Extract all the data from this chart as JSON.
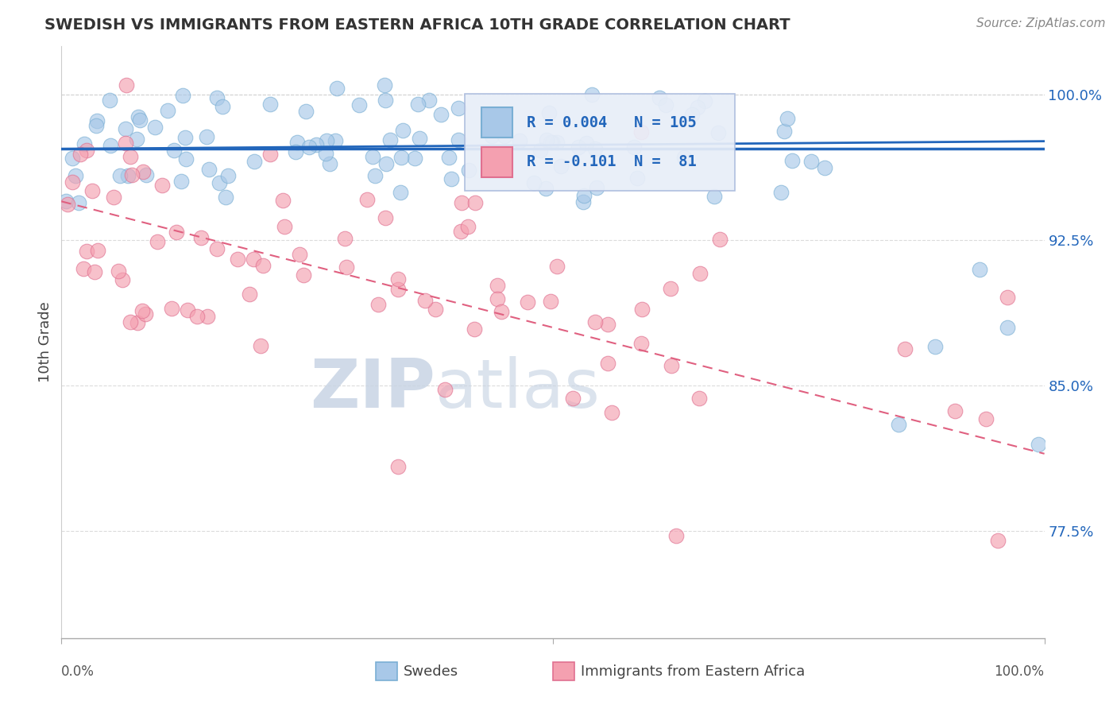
{
  "title": "SWEDISH VS IMMIGRANTS FROM EASTERN AFRICA 10TH GRADE CORRELATION CHART",
  "source_text": "Source: ZipAtlas.com",
  "ylabel": "10th Grade",
  "xlim": [
    0.0,
    1.0
  ],
  "ylim": [
    0.72,
    1.025
  ],
  "yticks": [
    0.775,
    0.85,
    0.925,
    1.0
  ],
  "ytick_labels": [
    "77.5%",
    "85.0%",
    "92.5%",
    "100.0%"
  ],
  "legend_r_swedes": "R = 0.004",
  "legend_n_swedes": "N = 105",
  "legend_r_immigrants": "R = -0.101",
  "legend_n_immigrants": "N =  81",
  "swedes_color": "#a8c8e8",
  "swedes_edge_color": "#7aafd4",
  "immigrants_color": "#f4a0b0",
  "immigrants_edge_color": "#e07090",
  "regression_swedes_color": "#2266bb",
  "regression_immigrants_color": "#e06080",
  "hline_color": "#2266bb",
  "hline_y": 0.972,
  "swedes_reg_intercept": 0.972,
  "swedes_reg_slope": 0.004,
  "immigrants_reg_intercept": 0.945,
  "immigrants_reg_slope": -0.13,
  "background_color": "#ffffff",
  "grid_color": "#cccccc",
  "watermark_zip_color": "#c8d4e4",
  "watermark_atlas_color": "#c8d4e4",
  "circle_size": 180,
  "legend_box_color": "#e8eef8",
  "legend_border_color": "#aabbdd",
  "legend_text_color": "#2266bb",
  "title_color": "#333333",
  "source_color": "#888888",
  "ylabel_color": "#444444",
  "xtick_label_color": "#555555",
  "ytick_label_color": "#2266bb"
}
